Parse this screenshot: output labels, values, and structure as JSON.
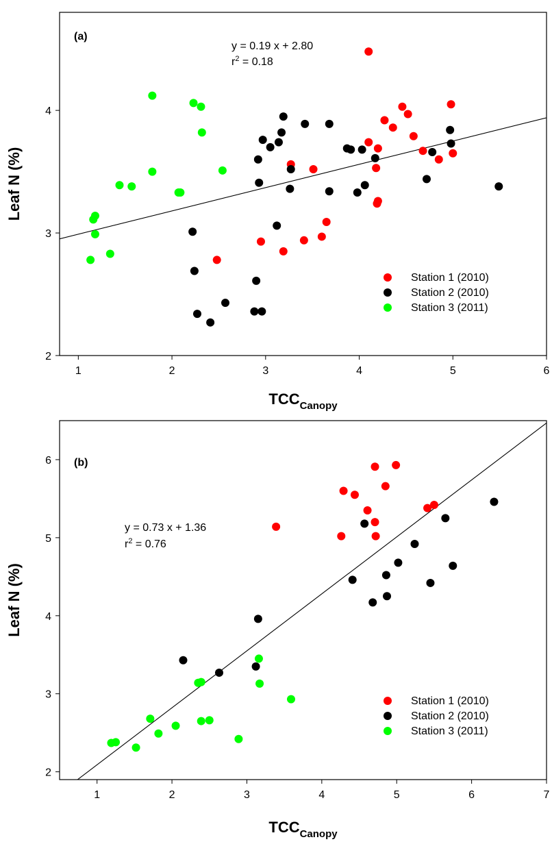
{
  "chart_data": [
    {
      "type": "scatter",
      "panel_label": "(a)",
      "xlabel": "TCC",
      "xlabel_sub": "Canopy",
      "ylabel": "Leaf N (%)",
      "xlim": [
        0.8,
        6
      ],
      "ylim": [
        2,
        4.8
      ],
      "xticks": [
        1,
        2,
        3,
        4,
        5,
        6
      ],
      "yticks": [
        2,
        3,
        4
      ],
      "grid": false,
      "legend_position": "bottom-right",
      "equation": "y = 0.19 x + 2.80",
      "r2_prefix": "r",
      "r2_exp": "2",
      "r2_value": " = 0.18",
      "regression": {
        "slope": 0.19,
        "intercept": 2.8,
        "x_range": [
          0.8,
          6
        ]
      },
      "series": [
        {
          "name": "Station 1 (2010)",
          "color": "#ff0000",
          "points": [
            [
              4.1,
              4.48
            ],
            [
              4.46,
              4.03
            ],
            [
              4.52,
              3.97
            ],
            [
              4.98,
              4.05
            ],
            [
              4.27,
              3.92
            ],
            [
              4.36,
              3.86
            ],
            [
              4.58,
              3.79
            ],
            [
              4.1,
              3.74
            ],
            [
              4.2,
              3.69
            ],
            [
              4.68,
              3.67
            ],
            [
              5.0,
              3.65
            ],
            [
              4.85,
              3.6
            ],
            [
              3.27,
              3.56
            ],
            [
              4.18,
              3.53
            ],
            [
              3.51,
              3.52
            ],
            [
              4.2,
              3.26
            ],
            [
              4.19,
              3.24
            ],
            [
              3.65,
              3.09
            ],
            [
              3.6,
              2.97
            ],
            [
              3.41,
              2.94
            ],
            [
              2.95,
              2.93
            ],
            [
              3.19,
              2.85
            ],
            [
              2.48,
              2.78
            ]
          ]
        },
        {
          "name": "Station 2 (2010)",
          "color": "#000000",
          "points": [
            [
              3.19,
              3.95
            ],
            [
              3.42,
              3.89
            ],
            [
              3.68,
              3.89
            ],
            [
              4.97,
              3.84
            ],
            [
              3.17,
              3.82
            ],
            [
              2.97,
              3.76
            ],
            [
              3.14,
              3.74
            ],
            [
              4.98,
              3.73
            ],
            [
              3.05,
              3.7
            ],
            [
              3.87,
              3.69
            ],
            [
              3.91,
              3.68
            ],
            [
              4.03,
              3.68
            ],
            [
              4.78,
              3.66
            ],
            [
              4.17,
              3.61
            ],
            [
              2.92,
              3.6
            ],
            [
              3.27,
              3.52
            ],
            [
              4.72,
              3.44
            ],
            [
              2.93,
              3.41
            ],
            [
              4.06,
              3.39
            ],
            [
              5.49,
              3.38
            ],
            [
              3.26,
              3.36
            ],
            [
              3.68,
              3.34
            ],
            [
              3.98,
              3.33
            ],
            [
              3.12,
              3.06
            ],
            [
              2.22,
              3.01
            ],
            [
              2.24,
              2.69
            ],
            [
              2.9,
              2.61
            ],
            [
              2.57,
              2.43
            ],
            [
              2.88,
              2.36
            ],
            [
              2.96,
              2.36
            ],
            [
              2.27,
              2.34
            ],
            [
              2.41,
              2.27
            ]
          ]
        },
        {
          "name": "Station 3 (2011)",
          "color": "#00ff00",
          "points": [
            [
              1.79,
              4.12
            ],
            [
              2.23,
              4.06
            ],
            [
              2.31,
              4.03
            ],
            [
              2.32,
              3.82
            ],
            [
              2.54,
              3.51
            ],
            [
              1.79,
              3.5
            ],
            [
              1.44,
              3.39
            ],
            [
              1.57,
              3.38
            ],
            [
              2.07,
              3.33
            ],
            [
              2.09,
              3.33
            ],
            [
              1.18,
              3.14
            ],
            [
              1.16,
              3.11
            ],
            [
              1.18,
              2.99
            ],
            [
              1.34,
              2.83
            ],
            [
              1.13,
              2.78
            ]
          ]
        }
      ]
    },
    {
      "type": "scatter",
      "panel_label": "(b)",
      "xlabel": "TCC",
      "xlabel_sub": "Canopy",
      "ylabel": "Leaf N (%)",
      "xlim": [
        0.5,
        7
      ],
      "ylim": [
        1.9,
        6.5
      ],
      "xticks": [
        1,
        2,
        3,
        4,
        5,
        6,
        7
      ],
      "yticks": [
        2,
        3,
        4,
        5,
        6
      ],
      "grid": false,
      "legend_position": "bottom-right",
      "equation": "y = 0.73 x + 1.36",
      "r2_prefix": "r",
      "r2_exp": "2",
      "r2_value": " = 0.76",
      "regression": {
        "slope": 0.73,
        "intercept": 1.36,
        "x_range": [
          0.5,
          7
        ]
      },
      "series": [
        {
          "name": "Station 1 (2010)",
          "color": "#ff0000",
          "points": [
            [
              4.99,
              5.93
            ],
            [
              4.71,
              5.91
            ],
            [
              4.85,
              5.66
            ],
            [
              4.29,
              5.6
            ],
            [
              4.44,
              5.55
            ],
            [
              5.5,
              5.42
            ],
            [
              5.41,
              5.38
            ],
            [
              4.61,
              5.35
            ],
            [
              4.71,
              5.2
            ],
            [
              3.39,
              5.14
            ],
            [
              4.26,
              5.02
            ],
            [
              4.72,
              5.02
            ]
          ]
        },
        {
          "name": "Station 2 (2010)",
          "color": "#000000",
          "points": [
            [
              6.3,
              5.46
            ],
            [
              5.65,
              5.25
            ],
            [
              4.57,
              5.18
            ],
            [
              5.24,
              4.92
            ],
            [
              5.02,
              4.68
            ],
            [
              5.75,
              4.64
            ],
            [
              4.86,
              4.52
            ],
            [
              4.41,
              4.46
            ],
            [
              5.45,
              4.42
            ],
            [
              4.87,
              4.25
            ],
            [
              4.68,
              4.17
            ],
            [
              3.15,
              3.96
            ],
            [
              2.15,
              3.43
            ],
            [
              3.12,
              3.35
            ],
            [
              2.63,
              3.27
            ]
          ]
        },
        {
          "name": "Station 3 (2011)",
          "color": "#00ff00",
          "points": [
            [
              3.16,
              3.45
            ],
            [
              2.39,
              3.15
            ],
            [
              2.35,
              3.14
            ],
            [
              3.17,
              3.13
            ],
            [
              3.59,
              2.93
            ],
            [
              1.71,
              2.68
            ],
            [
              2.39,
              2.65
            ],
            [
              2.5,
              2.66
            ],
            [
              2.05,
              2.59
            ],
            [
              1.82,
              2.49
            ],
            [
              2.89,
              2.42
            ],
            [
              1.19,
              2.37
            ],
            [
              1.25,
              2.38
            ],
            [
              1.52,
              2.31
            ]
          ]
        }
      ]
    }
  ]
}
